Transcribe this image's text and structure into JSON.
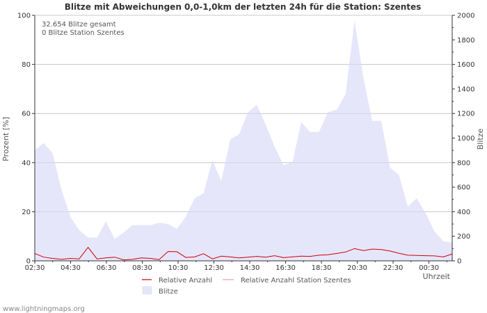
{
  "chart_data": {
    "type": "area",
    "title": "Blitze mit Abweichungen 0,0-1,0km der letzten 24h für die Station: Szentes",
    "xlabel": "Uhrzeit",
    "ylabel_left": "Prozent   [%]",
    "ylabel_right": "Blitze",
    "ylim_left": [
      0,
      100
    ],
    "ylim_right": [
      0,
      2000
    ],
    "yticks_left": [
      "0",
      "20",
      "40",
      "60",
      "80",
      "100"
    ],
    "yticks_right": [
      "0",
      "200",
      "400",
      "600",
      "800",
      "1000",
      "1200",
      "1400",
      "1600",
      "1800",
      "2000"
    ],
    "xticks": [
      "02:30",
      "04:30",
      "06:30",
      "08:30",
      "10:30",
      "12:30",
      "14:30",
      "16:30",
      "18:30",
      "20:30",
      "22:30",
      "00:30"
    ],
    "annotations": [
      "32.654 Blitze gesamt",
      "0 Blitze Station Szentes"
    ],
    "series": [
      {
        "name": "Blitze",
        "axis": "right",
        "style": "area",
        "color": "#e6e6fa",
        "values": [
          900,
          960,
          880,
          580,
          360,
          250,
          190,
          190,
          320,
          180,
          230,
          290,
          290,
          290,
          310,
          300,
          260,
          360,
          510,
          550,
          820,
          650,
          990,
          1030,
          1210,
          1270,
          1110,
          930,
          780,
          800,
          1130,
          1050,
          1050,
          1210,
          1230,
          1360,
          1960,
          1490,
          1140,
          1140,
          760,
          700,
          440,
          510,
          390,
          240,
          160,
          150
        ]
      },
      {
        "name": "Relative Anzahl",
        "axis": "left",
        "style": "line",
        "color": "#cc0000",
        "values": [
          3.0,
          1.5,
          1.0,
          0.6,
          1.0,
          0.8,
          5.5,
          0.8,
          1.2,
          1.5,
          0.4,
          0.6,
          1.2,
          1.0,
          0.5,
          3.8,
          3.7,
          1.4,
          1.6,
          2.9,
          0.8,
          1.9,
          1.6,
          1.2,
          1.5,
          1.8,
          1.5,
          2.1,
          1.3,
          1.6,
          1.9,
          1.8,
          2.3,
          2.5,
          3.0,
          3.6,
          5.0,
          4.2,
          4.8,
          4.6,
          4.0,
          3.1,
          2.3,
          2.2,
          2.1,
          2.0,
          1.6,
          2.8
        ]
      },
      {
        "name": "Relative Anzahl Station Szentes",
        "axis": "left",
        "style": "line",
        "color": "#f0a0a0",
        "values": [
          0,
          0,
          0,
          0,
          0,
          0,
          0,
          0,
          0,
          0,
          0,
          0,
          0,
          0,
          0,
          0,
          0,
          0,
          0,
          0,
          0,
          0,
          0,
          0,
          0,
          0,
          0,
          0,
          0,
          0,
          0,
          0,
          0,
          0,
          0,
          0,
          0,
          0,
          0,
          0,
          0,
          0,
          0,
          0,
          0,
          0,
          0,
          0
        ]
      }
    ],
    "legend": [
      "Relative Anzahl",
      "Relative Anzahl Station Szentes",
      "Blitze"
    ]
  },
  "credit": "www.lightningmaps.org"
}
